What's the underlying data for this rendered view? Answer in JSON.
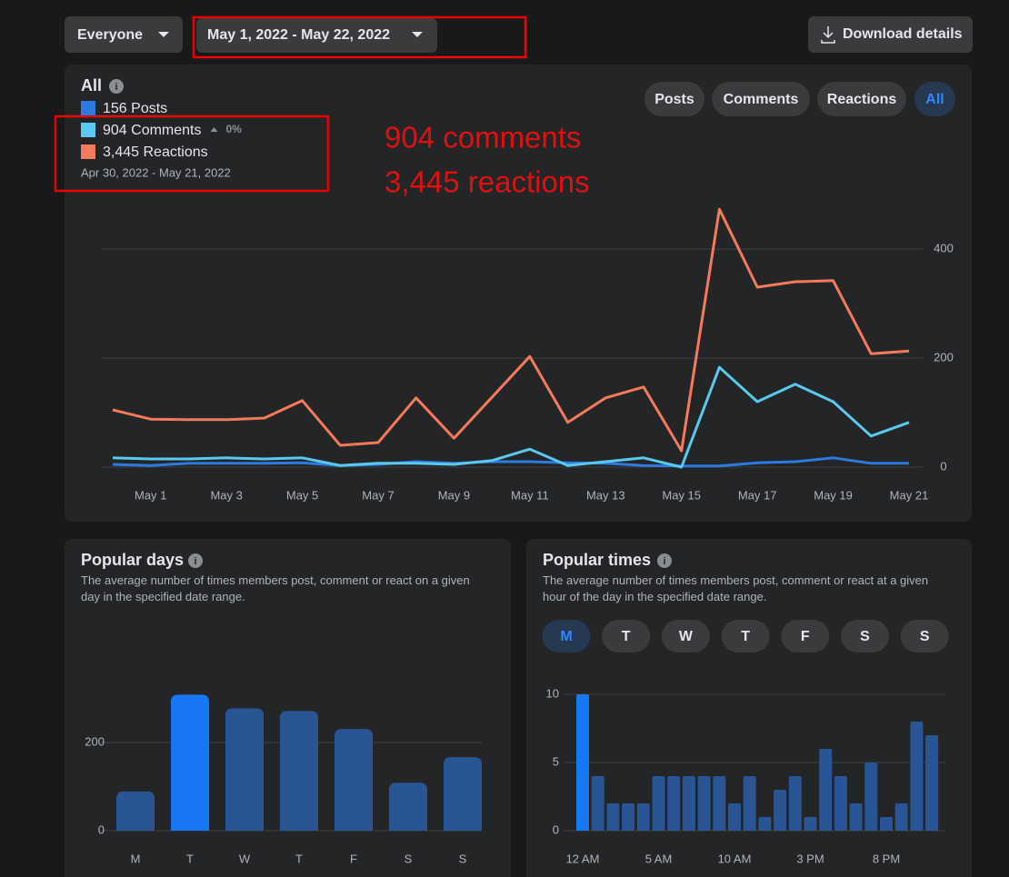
{
  "toolbar": {
    "audience": "Everyone",
    "date_range": "May 1, 2022 - May 22, 2022",
    "download": "Download details"
  },
  "overview": {
    "title": "All",
    "change": "0%",
    "period": "Apr 30, 2022 - May 21, 2022",
    "tabs": [
      "Posts",
      "Comments",
      "Reactions",
      "All"
    ],
    "annotation": [
      "904 comments",
      "3,445 reactions"
    ]
  },
  "popular_times_days": [
    "M",
    "T",
    "W",
    "T",
    "F",
    "S",
    "S"
  ],
  "chart_data": [
    {
      "type": "line",
      "categories": [
        null,
        "May 1",
        null,
        "May 3",
        null,
        "May 5",
        null,
        "May 7",
        null,
        "May 9",
        null,
        "May 11",
        null,
        "May 13",
        null,
        "May 15",
        null,
        "May 17",
        null,
        "May 19",
        null,
        "May 21"
      ],
      "series": [
        {
          "name": "156 Posts",
          "color": "#2d7be0",
          "values": [
            5,
            3,
            7,
            7,
            7,
            8,
            3,
            5,
            10,
            7,
            10,
            10,
            8,
            7,
            3,
            2,
            2,
            8,
            10,
            17,
            7,
            7
          ]
        },
        {
          "name": "904 Comments",
          "color": "#5bc8ef",
          "values": [
            17,
            15,
            15,
            17,
            15,
            17,
            3,
            7,
            7,
            5,
            12,
            33,
            3,
            10,
            17,
            0,
            183,
            120,
            152,
            120,
            57,
            82
          ]
        },
        {
          "name": "3,445 Reactions",
          "color": "#f47a5a",
          "values": [
            105,
            88,
            87,
            87,
            90,
            122,
            40,
            45,
            127,
            53,
            128,
            203,
            82,
            127,
            147,
            30,
            473,
            330,
            340,
            342,
            208,
            213
          ]
        }
      ],
      "ylim": [
        0,
        480
      ],
      "yticks": [
        0,
        200,
        400
      ],
      "grid": true
    },
    {
      "type": "bar",
      "title": "Popular days",
      "subtitle": "The average number of times members post, comment or react on a given day in the specified date range.",
      "categories": [
        "M",
        "T",
        "W",
        "T",
        "F",
        "S",
        "S"
      ],
      "values": [
        89,
        309,
        278,
        272,
        231,
        109,
        167
      ],
      "colors": [
        "#2a5594",
        "#1877f2",
        "#2a5594",
        "#2a5594",
        "#2a5594",
        "#2a5594",
        "#2a5594"
      ],
      "ylim": [
        0,
        320
      ],
      "yticks": [
        0,
        200
      ],
      "grid": true
    },
    {
      "type": "bar",
      "title": "Popular times",
      "subtitle": "The average number of times members post, comment or react at a given hour of the day in the specified date range.",
      "categories": [
        "12 AM",
        null,
        null,
        null,
        null,
        "5 AM",
        null,
        null,
        null,
        null,
        "10 AM",
        null,
        null,
        null,
        null,
        "3 PM",
        null,
        null,
        null,
        null,
        "8 PM",
        null,
        null,
        null
      ],
      "values": [
        10,
        4,
        2,
        2,
        2,
        4,
        4,
        4,
        4,
        4,
        2,
        4,
        1,
        3,
        4,
        1,
        6,
        4,
        2,
        5,
        1,
        2,
        8,
        7
      ],
      "colors": [
        "#1877f2",
        "#2a5594",
        "#2a5594",
        "#2a5594",
        "#2a5594",
        "#2a5594",
        "#2a5594",
        "#2a5594",
        "#2a5594",
        "#2a5594",
        "#2a5594",
        "#2a5594",
        "#2a5594",
        "#2a5594",
        "#2a5594",
        "#2a5594",
        "#2a5594",
        "#2a5594",
        "#2a5594",
        "#2a5594",
        "#2a5594",
        "#2a5594",
        "#2a5594",
        "#2a5594"
      ],
      "ylim": [
        0,
        10
      ],
      "yticks": [
        0,
        5,
        10
      ],
      "grid": true
    }
  ]
}
